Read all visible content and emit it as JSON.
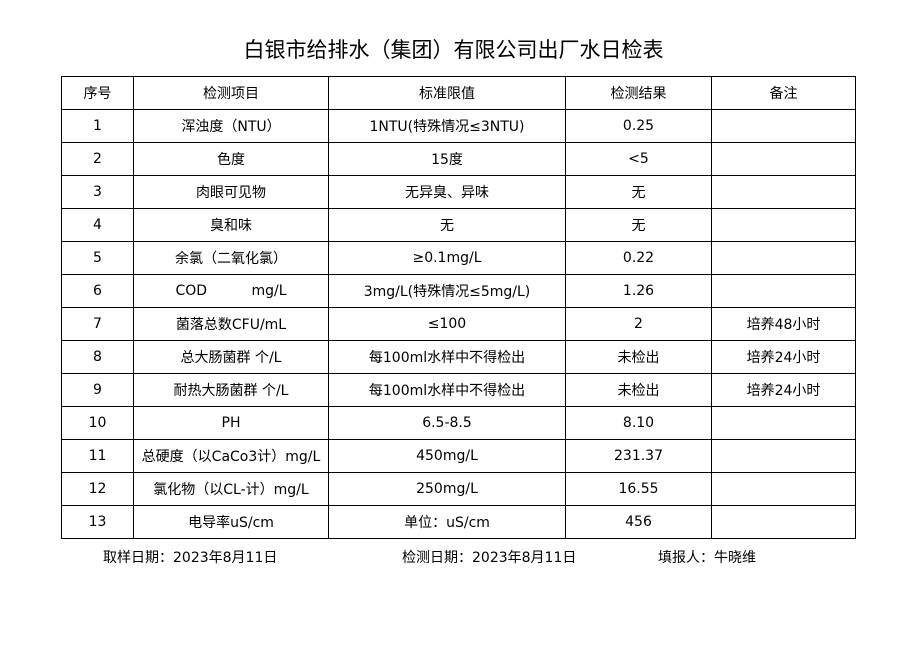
{
  "title": "白银市给排水（集团）有限公司出厂水日检表",
  "table": {
    "header": [
      "序号",
      "检测项目",
      "标准限值",
      "检测结果",
      "备注"
    ],
    "rows": [
      [
        "1",
        "浑浊度（NTU）",
        "1NTU(特殊情况≤3NTU)",
        "0.25"
      ],
      [
        "2",
        "色度",
        "15度",
        "<5"
      ],
      [
        "3",
        "肉眼可见物",
        "无异臭、异味",
        "无"
      ],
      [
        "4",
        "臭和味",
        "无",
        "无"
      ],
      [
        "5",
        "余氯（二氧化氯）",
        "≥0.1mg/L",
        "0.22"
      ],
      [
        "6",
        "COD          mg/L",
        "3mg/L(特殊情况≤5mg/L)",
        "1.26"
      ],
      [
        "7",
        "菌落总数CFU/mL",
        "≤100",
        "2",
        "培养48小时"
      ],
      [
        "8",
        "总大肠菌群 个/L",
        "每100ml水样中不得检出",
        "未检出",
        "培养24小时"
      ],
      [
        "9",
        "耐热大肠菌群 个/L",
        "每100ml水样中不得检出",
        "未检出",
        "培养24小时"
      ],
      [
        "10",
        "PH",
        "6.5-8.5",
        "8.10"
      ],
      [
        "11",
        "总硬度（以CaCo3计）mg/L",
        "450mg/L",
        "231.37"
      ],
      [
        "12",
        "氯化物（以CL-计）mg/L",
        "250mg/L",
        "16.55"
      ],
      [
        "13",
        "电导率uS/cm",
        "单位：uS/cm",
        "456"
      ]
    ]
  },
  "footer": {
    "sampling_date": "取样日期：2023年8月11日",
    "test_date": "检测日期：2023年8月11日",
    "reporter": "填报人：牛晓维"
  }
}
